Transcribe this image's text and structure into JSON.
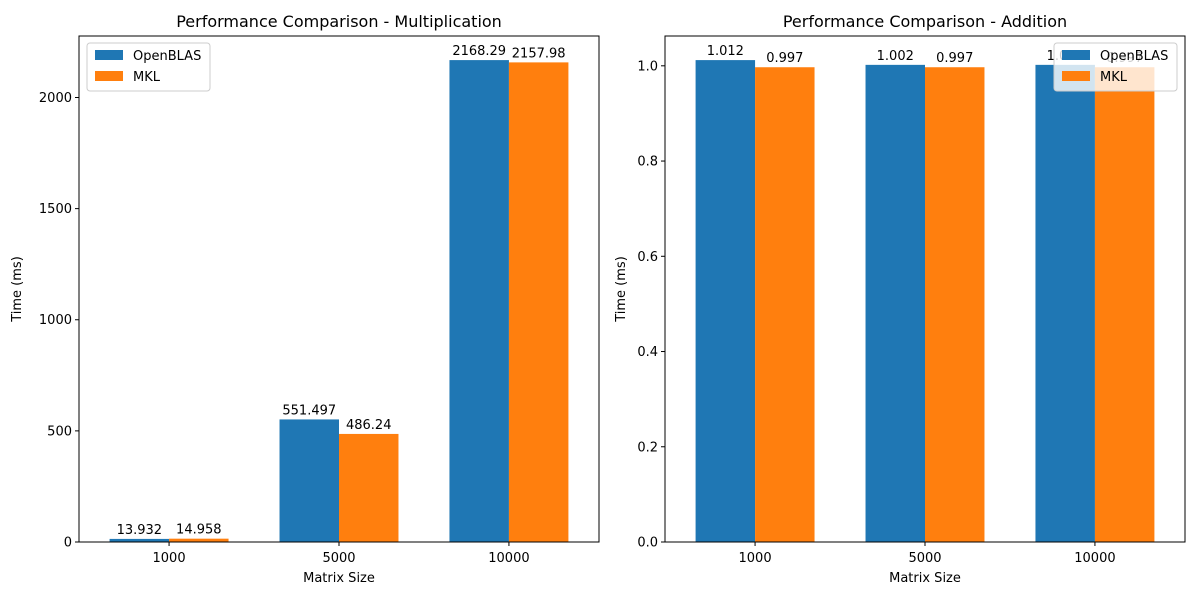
{
  "colors": {
    "openblas": "#1f77b4",
    "mkl": "#ff7f0e"
  },
  "chart_data": [
    {
      "type": "bar",
      "title": "Performance Comparison - Multiplication",
      "xlabel": "Matrix Size",
      "ylabel": "Time (ms)",
      "categories": [
        "1000",
        "5000",
        "10000"
      ],
      "ylim": [
        0,
        2276.7
      ],
      "yticks": [
        "0",
        "500",
        "1000",
        "1500",
        "2000"
      ],
      "ytick_values": [
        0,
        500,
        1000,
        1500,
        2000
      ],
      "legend_position": "upper-left",
      "series": [
        {
          "name": "OpenBLAS",
          "values": [
            13.932,
            551.497,
            2168.29
          ],
          "labels": [
            "13.932",
            "551.497",
            "2168.29"
          ]
        },
        {
          "name": "MKL",
          "values": [
            14.958,
            486.24,
            2157.98
          ],
          "labels": [
            "14.958",
            "486.24",
            "2157.98"
          ]
        }
      ]
    },
    {
      "type": "bar",
      "title": "Performance Comparison - Addition",
      "xlabel": "Matrix Size",
      "ylabel": "Time (ms)",
      "categories": [
        "1000",
        "5000",
        "10000"
      ],
      "ylim": [
        0,
        1.0626
      ],
      "yticks": [
        "0.0",
        "0.2",
        "0.4",
        "0.6",
        "0.8",
        "1.0"
      ],
      "ytick_values": [
        0,
        0.2,
        0.4,
        0.6,
        0.8,
        1.0
      ],
      "legend_position": "upper-right",
      "series": [
        {
          "name": "OpenBLAS",
          "values": [
            1.012,
            1.002,
            1.002
          ],
          "labels": [
            "1.012",
            "1.002",
            "1.002"
          ]
        },
        {
          "name": "MKL",
          "values": [
            0.997,
            0.997,
            0.997
          ],
          "labels": [
            "0.997",
            "0.997",
            "0.997"
          ]
        }
      ]
    }
  ]
}
